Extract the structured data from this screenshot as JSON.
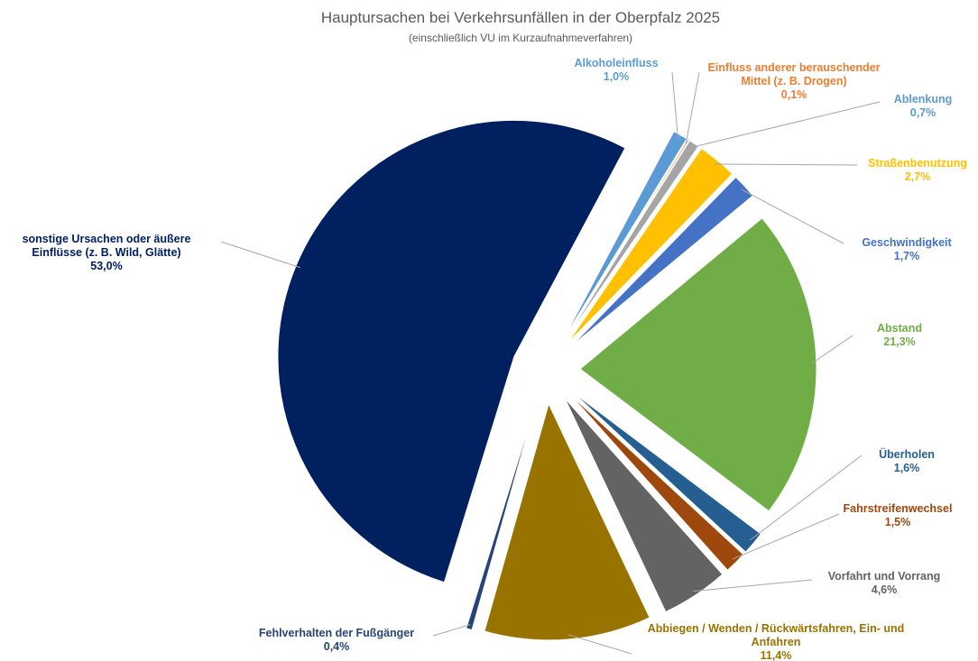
{
  "chart_data": {
    "type": "pie",
    "title": "Hauptursachen bei Verkehrsunfällen in der Oberpfalz 2025",
    "subtitle": "(einschließlich VU im Kurzaufnahmeverfahren)",
    "categories": [
      "Alkoholeinfluss",
      "Einfluss anderer berauschender Mittel (z. B. Drogen)",
      "Ablenkung",
      "Straßenbenutzung",
      "Geschwindigkeit",
      "Abstand",
      "Überholen",
      "Fahrstreifenwechsel",
      "Vorfahrt und Vorrang",
      "Abbiegen / Wenden / Rückwärtsfahren, Ein- und Anfahren",
      "Fehlverhalten der Fußgänger",
      "sonstige Ursachen oder äußere Einflüsse (z. B. Wild, Glätte)"
    ],
    "values": [
      1.0,
      0.1,
      0.7,
      2.7,
      1.7,
      21.3,
      1.6,
      1.5,
      4.6,
      11.4,
      0.4,
      53.0
    ],
    "value_labels": [
      "1,0%",
      "0,1%",
      "0,7%",
      "2,7%",
      "1,7%",
      "21,3%",
      "1,6%",
      "1,5%",
      "4,6%",
      "11,4%",
      "0,4%",
      "53,0%"
    ],
    "colors": [
      "#5b9bd5",
      "#ed7d31",
      "#a5a5a5",
      "#ffc000",
      "#4472c4",
      "#70ad47",
      "#255e91",
      "#9e480e",
      "#636363",
      "#997300",
      "#264478",
      "#002060"
    ]
  }
}
